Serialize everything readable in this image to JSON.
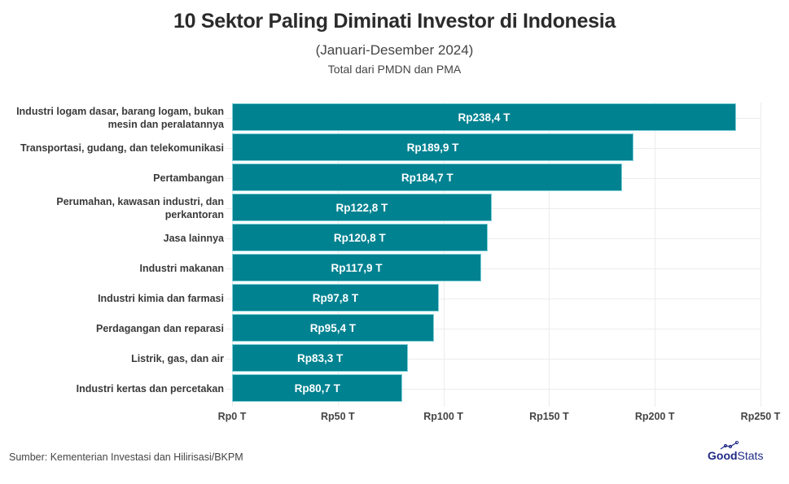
{
  "header": {
    "title": "10 Sektor Paling Diminati Investor di Indonesia",
    "subtitle": "(Januari-Desember 2024)",
    "subtitle2": "Total dari PMDN dan PMA"
  },
  "footer": {
    "source": "Sumber: Kementerian Investasi dan Hilirisasi/BKPM",
    "logo_good": "Good",
    "logo_stats": "Stats"
  },
  "colors": {
    "bar": "#008291",
    "bar_border": "#7fd0d8",
    "title": "#2b2b2b"
  },
  "chart_data": {
    "type": "bar",
    "orientation": "horizontal",
    "title": "10 Sektor Paling Diminati Investor di Indonesia",
    "subtitle": "(Januari-Desember 2024) Total dari PMDN dan PMA",
    "xlabel": "",
    "ylabel": "",
    "xlim": [
      0,
      250
    ],
    "unit": "Rp triliun",
    "categories": [
      "Industri logam dasar, barang logam, bukan mesin dan peralatannya",
      "Transportasi, gudang, dan telekomunikasi",
      "Pertambangan",
      "Perumahan, kawasan industri, dan perkantoran",
      "Jasa lainnya",
      "Industri makanan",
      "Industri kimia dan farmasi",
      "Perdagangan dan reparasi",
      "Listrik, gas, dan air",
      "Industri kertas dan percetakan"
    ],
    "values": [
      238.4,
      189.9,
      184.7,
      122.8,
      120.8,
      117.9,
      97.8,
      95.4,
      83.3,
      80.7
    ],
    "value_labels": [
      "Rp238,4 T",
      "Rp189,9 T",
      "Rp184,7 T",
      "Rp122,8 T",
      "Rp120,8 T",
      "Rp117,9 T",
      "Rp97,8 T",
      "Rp95,4 T",
      "Rp83,3 T",
      "Rp80,7 T"
    ],
    "x_ticks": [
      0,
      50,
      100,
      150,
      200,
      250
    ],
    "x_tick_labels": [
      "Rp0 T",
      "Rp50 T",
      "Rp100 T",
      "Rp150 T",
      "Rp200 T",
      "Rp250 T"
    ],
    "grid": true,
    "legend": "none",
    "source": "Sumber: Kementerian Investasi dan Hilirisasi/BKPM"
  }
}
